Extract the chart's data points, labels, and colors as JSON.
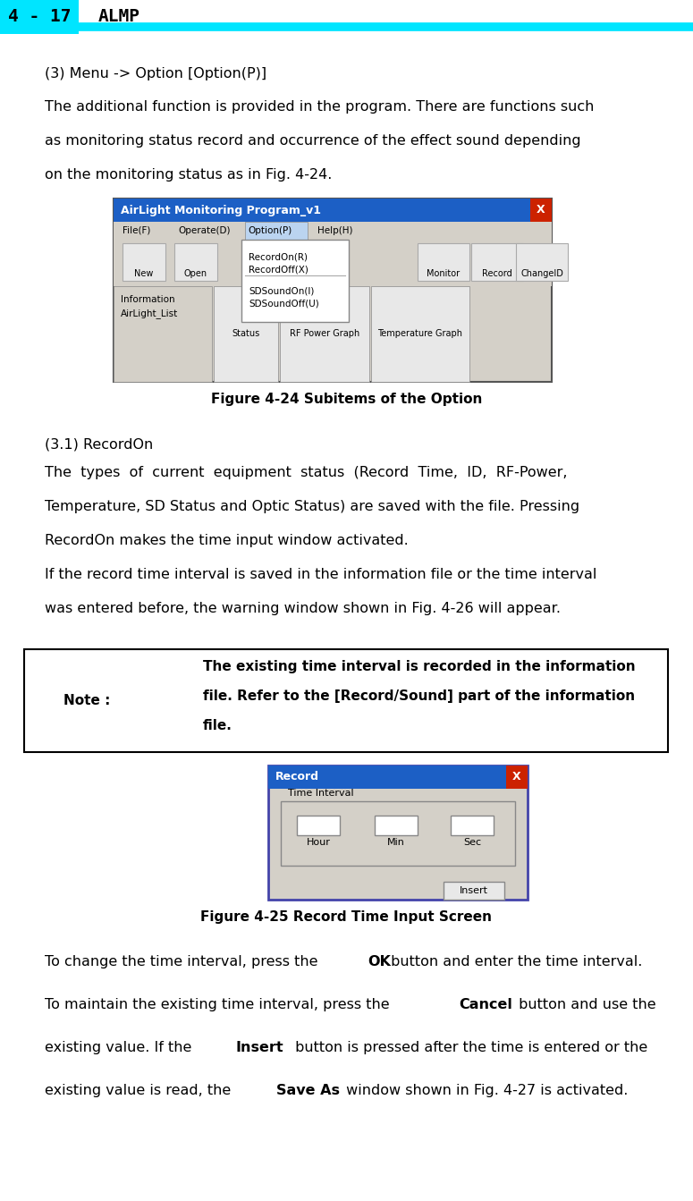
{
  "page_width": 7.75,
  "page_height": 13.43,
  "dpi": 100,
  "bg_color": "#ffffff",
  "header": {
    "box_color": "#00e5ff",
    "number_text": "4 - 17",
    "title_text": "ALMP",
    "line_color": "#00e5ff"
  },
  "body_text_color": "#000000",
  "section_heading": "(3) Menu -> Option [Option(P)]",
  "para1_lines": [
    "The additional function is provided in the program. There are functions such",
    "as monitoring status record and occurrence of the effect sound depending",
    "on the monitoring status as in Fig. 4-24."
  ],
  "fig1_caption": "Figure 4-24 Subitems of the Option",
  "section2_heading": "(3.1) RecordOn",
  "para2_lines": [
    "The  types  of  current  equipment  status  (Record  Time,  ID,  RF-Power,",
    "Temperature, SD Status and Optic Status) are saved with the file. Pressing",
    "RecordOn makes the time input window activated."
  ],
  "para3_lines": [
    "If the record time interval is saved in the information file or the time interval",
    "was entered before, the warning window shown in Fig. 4-26 will appear."
  ],
  "note_label": "Note :",
  "note_lines": [
    "The existing time interval is recorded in the information",
    "file. Refer to the [Record/Sound] part of the information",
    "file."
  ],
  "fig2_caption": "Figure 4-25 Record Time Input Screen",
  "para4_lines": [
    [
      [
        "To change the time interval, press the ",
        false
      ],
      [
        "OK",
        true
      ],
      [
        " button and enter the time interval.",
        false
      ]
    ],
    [
      [
        "To maintain the existing time interval, press the ",
        false
      ],
      [
        "Cancel",
        true
      ],
      [
        " button and use the",
        false
      ]
    ],
    [
      [
        "existing value. If the ",
        false
      ],
      [
        "Insert",
        true
      ],
      [
        " button is pressed after the time is entered or the",
        false
      ]
    ],
    [
      [
        "existing value is read, the ",
        false
      ],
      [
        "Save As",
        true
      ],
      [
        " window shown in Fig. 4-27 is activated.",
        false
      ]
    ]
  ],
  "fig1_title_bg": "#1c5fc5",
  "fig1_title_text": "AirLight Monitoring Program_v1",
  "fig2_title_bg": "#1c5fc5",
  "fig2_title_text": "Record",
  "close_btn_color": "#cc2200"
}
